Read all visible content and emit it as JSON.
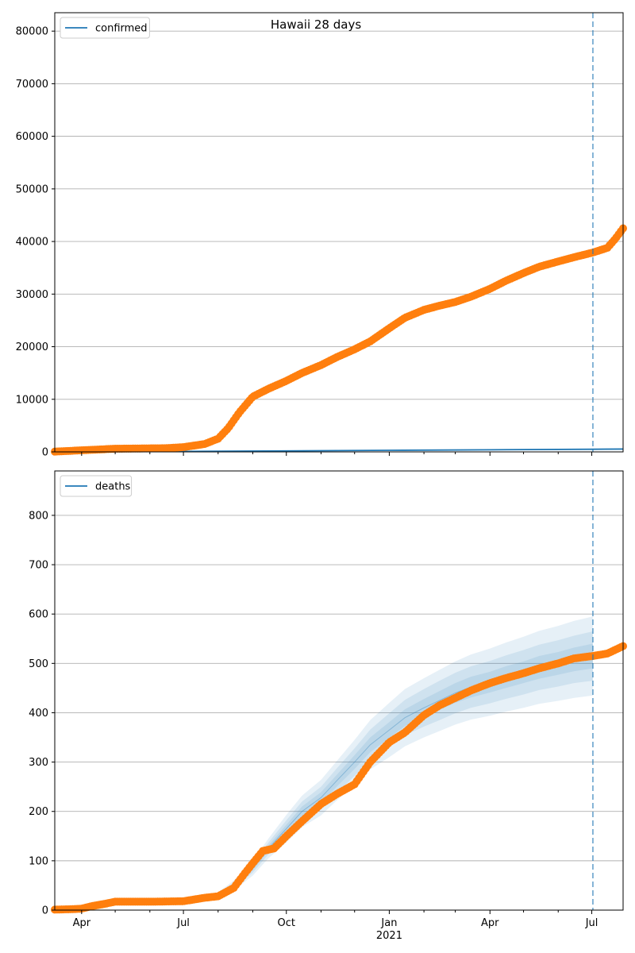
{
  "figure": {
    "title": "Hawaii 28 days"
  },
  "chart_data": [
    {
      "type": "line",
      "name": "confirmed-panel",
      "legend": {
        "label": "confirmed",
        "placement": "upper-left"
      },
      "grid": "y",
      "ylim": [
        0,
        83500
      ],
      "xlim": [
        "2020-03-08",
        "2021-07-29"
      ],
      "y_ticks": [
        0,
        10000,
        20000,
        30000,
        40000,
        50000,
        60000,
        70000,
        80000
      ],
      "forecast_start": "2021-07-02",
      "colors": {
        "model": "#1f77b4",
        "observed": "#ff7f0e",
        "forecast_line": "#1f77b4"
      },
      "model_series": {
        "x": [
          "2020-03-08",
          "2020-07-01",
          "2020-10-01",
          "2021-01-01",
          "2021-04-01",
          "2021-07-02",
          "2021-07-29"
        ],
        "y": [
          0,
          100,
          190,
          300,
          400,
          500,
          540
        ]
      },
      "observed_series": {
        "x": [
          "2020-03-08",
          "2020-04-01",
          "2020-05-01",
          "2020-06-15",
          "2020-07-01",
          "2020-07-20",
          "2020-08-01",
          "2020-08-10",
          "2020-08-20",
          "2020-09-01",
          "2020-09-15",
          "2020-10-01",
          "2020-10-15",
          "2020-11-01",
          "2020-11-15",
          "2020-12-01",
          "2020-12-15",
          "2021-01-01",
          "2021-01-15",
          "2021-02-01",
          "2021-02-15",
          "2021-03-01",
          "2021-03-15",
          "2021-04-01",
          "2021-04-15",
          "2021-05-01",
          "2021-05-15",
          "2021-06-01",
          "2021-06-15",
          "2021-07-02",
          "2021-07-15",
          "2021-07-22",
          "2021-07-29"
        ],
        "y": [
          50,
          300,
          600,
          700,
          900,
          1500,
          2500,
          4500,
          7500,
          10500,
          12000,
          13500,
          15000,
          16500,
          18000,
          19500,
          21000,
          23500,
          25500,
          27000,
          27800,
          28500,
          29500,
          31000,
          32500,
          34000,
          35200,
          36200,
          37000,
          37900,
          38800,
          40500,
          42500
        ]
      }
    },
    {
      "type": "line",
      "name": "deaths-panel",
      "legend": {
        "label": "deaths",
        "placement": "upper-left"
      },
      "grid": "y",
      "ylim": [
        0,
        890
      ],
      "xlim": [
        "2020-03-08",
        "2021-07-29"
      ],
      "y_ticks": [
        0,
        100,
        200,
        300,
        400,
        500,
        600,
        700,
        800
      ],
      "x_ticks": [
        {
          "date": "2020-04-01",
          "label": "Apr"
        },
        {
          "date": "2020-07-01",
          "label": "Jul"
        },
        {
          "date": "2020-10-01",
          "label": "Oct"
        },
        {
          "date": "2021-01-01",
          "label": "Jan",
          "sublabel": "2021"
        },
        {
          "date": "2021-04-01",
          "label": "Apr"
        },
        {
          "date": "2021-07-01",
          "label": "Jul"
        }
      ],
      "forecast_start": "2021-07-02",
      "colors": {
        "band": "#1f77b4",
        "observed": "#ff7f0e",
        "forecast_line": "#1f77b4"
      },
      "band_x": [
        "2020-03-08",
        "2020-04-15",
        "2020-05-15",
        "2020-06-15",
        "2020-07-01",
        "2020-07-15",
        "2020-08-01",
        "2020-08-15",
        "2020-09-01",
        "2020-09-15",
        "2020-10-01",
        "2020-10-15",
        "2020-11-01",
        "2020-11-15",
        "2020-12-01",
        "2020-12-15",
        "2021-01-01",
        "2021-01-15",
        "2021-02-01",
        "2021-02-15",
        "2021-03-01",
        "2021-03-15",
        "2021-04-01",
        "2021-04-15",
        "2021-05-01",
        "2021-05-15",
        "2021-06-01",
        "2021-06-15",
        "2021-07-02"
      ],
      "band_median": [
        2,
        10,
        17,
        18,
        19,
        22,
        30,
        50,
        85,
        125,
        165,
        200,
        228,
        262,
        300,
        335,
        365,
        390,
        410,
        425,
        440,
        452,
        462,
        472,
        482,
        492,
        500,
        508,
        515
      ],
      "band_spreads": [
        {
          "offsets": [
            0,
            1,
            2,
            3,
            4,
            4,
            6,
            10,
            15,
            20,
            28,
            32,
            36,
            40,
            45,
            50,
            55,
            58,
            60,
            62,
            64,
            66,
            68,
            70,
            72,
            74,
            76,
            78,
            80
          ]
        },
        {
          "offsets": [
            0,
            1,
            1,
            2,
            2,
            3,
            4,
            6,
            9,
            12,
            17,
            20,
            22,
            25,
            28,
            31,
            34,
            36,
            38,
            40,
            41,
            42,
            43,
            44,
            45,
            46,
            47,
            48,
            50
          ]
        },
        {
          "offsets": [
            0,
            0,
            1,
            1,
            1,
            1,
            2,
            3,
            4,
            6,
            8,
            10,
            11,
            12,
            14,
            15,
            16,
            17,
            18,
            19,
            20,
            21,
            21,
            22,
            22,
            23,
            23,
            24,
            25
          ]
        }
      ],
      "observed_series": {
        "x": [
          "2020-03-08",
          "2020-03-25",
          "2020-04-01",
          "2020-04-10",
          "2020-04-20",
          "2020-05-01",
          "2020-06-01",
          "2020-07-01",
          "2020-07-20",
          "2020-08-01",
          "2020-08-15",
          "2020-08-25",
          "2020-09-01",
          "2020-09-10",
          "2020-09-20",
          "2020-10-01",
          "2020-10-15",
          "2020-11-01",
          "2020-11-15",
          "2020-12-01",
          "2020-12-15",
          "2021-01-01",
          "2021-01-15",
          "2021-02-01",
          "2021-02-15",
          "2021-03-01",
          "2021-03-15",
          "2021-04-01",
          "2021-04-15",
          "2021-05-01",
          "2021-05-15",
          "2021-06-01",
          "2021-06-15",
          "2021-07-02",
          "2021-07-15",
          "2021-07-29"
        ],
        "y": [
          1,
          2,
          3,
          8,
          12,
          17,
          17,
          18,
          25,
          28,
          45,
          75,
          95,
          120,
          125,
          150,
          180,
          215,
          235,
          255,
          300,
          340,
          360,
          395,
          415,
          430,
          445,
          460,
          470,
          480,
          490,
          500,
          510,
          515,
          520,
          535
        ]
      }
    }
  ]
}
